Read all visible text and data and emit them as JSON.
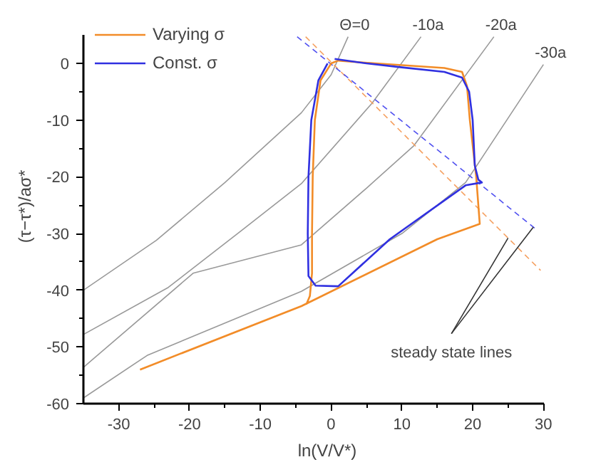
{
  "chart_data": {
    "type": "line",
    "xlabel": "ln(V/V*)",
    "ylabel": "(τ−τ*)/aσ*",
    "xlim": [
      -35,
      30
    ],
    "ylim": [
      -60,
      5
    ],
    "xticks": [
      -30,
      -20,
      -10,
      0,
      10,
      20,
      30
    ],
    "yticks": [
      -60,
      -50,
      -40,
      -30,
      -20,
      -10,
      0
    ],
    "grid": false,
    "legend": "top left",
    "marker": "none",
    "series": [
      {
        "color": "#999999",
        "x": [
          -35,
          -24.7,
          -15,
          -4.2,
          0,
          2.4
        ],
        "values": [
          -40,
          -31.2,
          -21,
          -8.7,
          -2,
          4.7
        ]
      },
      {
        "color": "#999999",
        "x": [
          -35,
          -23,
          -12.7,
          -4.2,
          5.8,
          12.7
        ],
        "values": [
          -47.8,
          -39.5,
          -29.5,
          -21.2,
          -7,
          4.7
        ]
      },
      {
        "color": "#999999",
        "x": [
          -35,
          -19.5,
          -4.2,
          5,
          11.7,
          23
        ],
        "values": [
          -53.6,
          -37,
          -32,
          -22,
          -14.5,
          4.7
        ]
      },
      {
        "color": "#999999",
        "x": [
          -35,
          -26,
          -4.2,
          10,
          19,
          30
        ],
        "values": [
          -59,
          -51.5,
          -40.2,
          -30,
          -21,
          -0.2
        ]
      },
      {
        "color": "#f5a060",
        "line_style": "dashed",
        "x": [
          -3.6,
          29.6
        ],
        "values": [
          4.7,
          -36.5
        ]
      },
      {
        "color": "#5050f0",
        "line_style": "dashed",
        "x": [
          -4.8,
          29.2
        ],
        "values": [
          4.7,
          -29.5
        ]
      },
      {
        "name": "Varying σ",
        "color": "#f28c28",
        "x": [
          -27,
          -4.2,
          15,
          21,
          20.5,
          19.6,
          19.2,
          18.5,
          16,
          10,
          4,
          1,
          0,
          -1.5,
          -2.3,
          -2.6,
          -2.7,
          -2.7,
          -3,
          -3.5
        ],
        "values": [
          -54,
          -42.8,
          -31,
          -28.3,
          -20,
          -10,
          -4,
          -1.5,
          -0.8,
          -0.3,
          0.2,
          0.5,
          0,
          -3,
          -10,
          -20,
          -30,
          -37,
          -41,
          -42.5
        ]
      },
      {
        "name": "Const. σ",
        "color": "#3030e0",
        "x": [
          0.5,
          5,
          10,
          16,
          18.5,
          19.5,
          20,
          20.3,
          20.8,
          21.3,
          19,
          8.3,
          1,
          -2.2,
          -3.2,
          -3.3,
          -3.2,
          -2.8,
          -1.8,
          -0.5
        ],
        "values": [
          0.8,
          0,
          -0.7,
          -1.5,
          -2.5,
          -5,
          -10,
          -18,
          -20.5,
          -21,
          -21.5,
          -31,
          -39.3,
          -39.2,
          -37.5,
          -30,
          -20,
          -10,
          -3,
          0
        ]
      }
    ],
    "annotations": [
      {
        "text": "Θ=0",
        "x": 2.4,
        "y": 4.7
      },
      {
        "text": "-10a",
        "x": 12.7,
        "y": 4.7
      },
      {
        "text": "-20a",
        "x": 23,
        "y": 4.7
      },
      {
        "text": "-30a",
        "x": 30,
        "y": -0.2
      },
      {
        "text": "steady state lines",
        "x": 25,
        "y": -30.8
      }
    ]
  }
}
